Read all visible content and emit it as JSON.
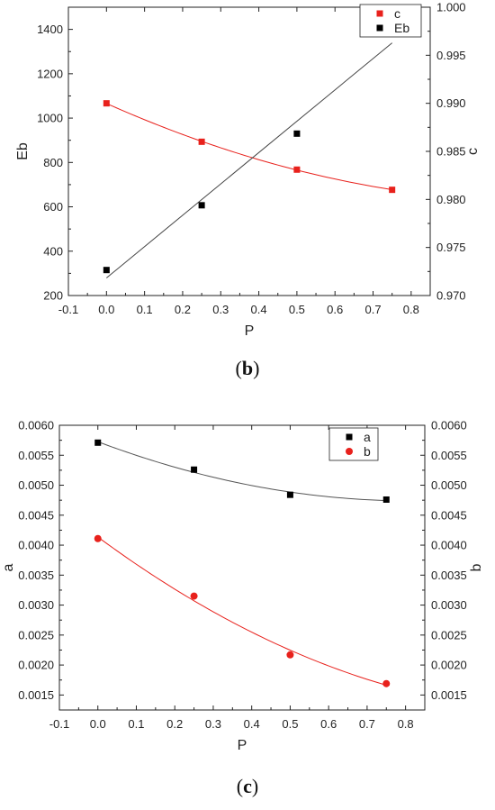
{
  "chart_data": [
    {
      "type": "scatter",
      "caption_letter": "b",
      "xlabel": "P",
      "ylabel_left": "Eb",
      "ylabel_right": "c",
      "xlim": [
        -0.1,
        0.85
      ],
      "ylim_left": [
        200,
        1500
      ],
      "ylim_right": [
        0.97,
        1.0
      ],
      "x_ticks": [
        "-0.1",
        "0.0",
        "0.1",
        "0.2",
        "0.3",
        "0.4",
        "0.5",
        "0.6",
        "0.7",
        "0.8"
      ],
      "y_ticks_left": [
        "200",
        "400",
        "600",
        "800",
        "1000",
        "1200",
        "1400"
      ],
      "y_ticks_right": [
        "0.970",
        "0.975",
        "0.980",
        "0.985",
        "0.990",
        "0.995",
        "1.000"
      ],
      "legend_position": "top-right",
      "series": [
        {
          "name": "c",
          "axis": "right",
          "marker": "square",
          "color": "#e8211c",
          "x": [
            0.0,
            0.25,
            0.5,
            0.75
          ],
          "y": [
            0.99,
            0.986,
            0.9831,
            0.981
          ],
          "fit": "curve"
        },
        {
          "name": "Eb",
          "axis": "left",
          "marker": "square",
          "color": "#000000",
          "x": [
            0.0,
            0.25,
            0.5,
            0.75
          ],
          "y": [
            315,
            607,
            930,
            1385
          ],
          "fit": "linear"
        }
      ]
    },
    {
      "type": "scatter",
      "caption_letter": "c",
      "xlabel": "P",
      "ylabel_left": "a",
      "ylabel_right": "b",
      "xlim": [
        -0.1,
        0.85
      ],
      "ylim_left": [
        0.00125,
        0.006
      ],
      "ylim_right": [
        0.00125,
        0.006
      ],
      "x_ticks": [
        "-0.1",
        "0.0",
        "0.1",
        "0.2",
        "0.3",
        "0.4",
        "0.5",
        "0.6",
        "0.7",
        "0.8"
      ],
      "y_ticks_left": [
        "0.0015",
        "0.0020",
        "0.0025",
        "0.0030",
        "0.0035",
        "0.0040",
        "0.0045",
        "0.0050",
        "0.0055",
        "0.0060"
      ],
      "y_ticks_right": [
        "0.0015",
        "0.0020",
        "0.0025",
        "0.0030",
        "0.0035",
        "0.0040",
        "0.0045",
        "0.0050",
        "0.0055",
        "0.0060"
      ],
      "legend_position": "top-right",
      "series": [
        {
          "name": "a",
          "axis": "left",
          "marker": "square",
          "color": "#000000",
          "x": [
            0.0,
            0.25,
            0.5,
            0.75
          ],
          "y": [
            0.00571,
            0.00526,
            0.00484,
            0.00476
          ],
          "fit": "curve"
        },
        {
          "name": "b",
          "axis": "right",
          "marker": "circle",
          "color": "#e8211c",
          "x": [
            0.0,
            0.25,
            0.5,
            0.75
          ],
          "y": [
            0.00411,
            0.00315,
            0.00217,
            0.00169
          ],
          "fit": "curve"
        }
      ]
    }
  ]
}
